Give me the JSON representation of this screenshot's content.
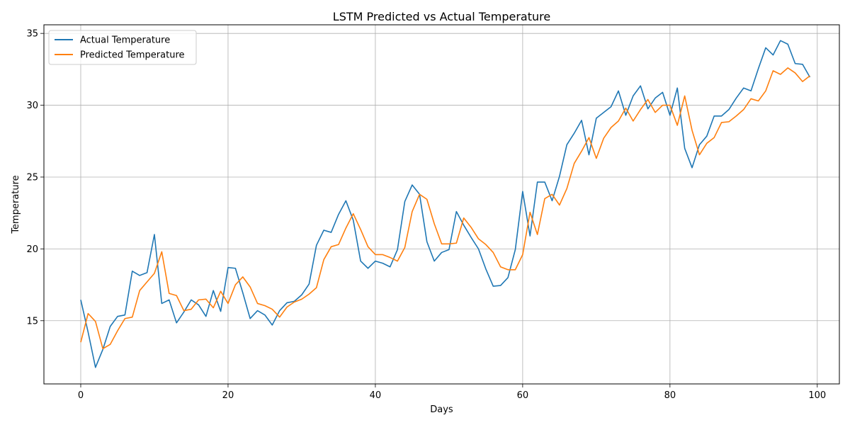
{
  "chart_data": {
    "type": "line",
    "title": "LSTM Predicted vs Actual Temperature",
    "xlabel": "Days",
    "ylabel": "Temperature",
    "xlim": [
      -5,
      103
    ],
    "ylim": [
      10.6,
      35.6
    ],
    "xticks": [
      0,
      20,
      40,
      60,
      80,
      100
    ],
    "yticks": [
      15,
      20,
      25,
      30,
      35
    ],
    "grid": true,
    "legend_position": "top-left",
    "x": [
      0,
      1,
      2,
      3,
      4,
      5,
      6,
      7,
      8,
      9,
      10,
      11,
      12,
      13,
      14,
      15,
      16,
      17,
      18,
      19,
      20,
      21,
      22,
      23,
      24,
      25,
      26,
      27,
      28,
      29,
      30,
      31,
      32,
      33,
      34,
      35,
      36,
      37,
      38,
      39,
      40,
      41,
      42,
      43,
      44,
      45,
      46,
      47,
      48,
      49,
      50,
      51,
      52,
      53,
      54,
      55,
      56,
      57,
      58,
      59,
      60,
      61,
      62,
      63,
      64,
      65,
      66,
      67,
      68,
      69,
      70,
      71,
      72,
      73,
      74,
      75,
      76,
      77,
      78,
      79,
      80,
      81,
      82,
      83,
      84,
      85,
      86,
      87,
      88,
      89,
      90,
      91,
      92,
      93,
      94,
      95,
      96,
      97,
      98,
      99
    ],
    "series": [
      {
        "name": "Actual Temperature",
        "color": "#1f77b4",
        "values": [
          16.45,
          14.2,
          11.75,
          13.0,
          14.6,
          15.3,
          15.4,
          18.45,
          18.15,
          18.35,
          21.0,
          16.2,
          16.45,
          14.85,
          15.6,
          16.45,
          16.1,
          15.3,
          17.1,
          15.65,
          18.7,
          18.65,
          16.95,
          15.15,
          15.7,
          15.4,
          14.7,
          15.7,
          16.25,
          16.35,
          16.8,
          17.55,
          20.25,
          21.3,
          21.15,
          22.4,
          23.35,
          22.0,
          19.15,
          18.65,
          19.15,
          19.0,
          18.75,
          19.95,
          23.3,
          24.45,
          23.8,
          20.5,
          19.15,
          19.75,
          19.95,
          22.6,
          21.65,
          20.8,
          20.0,
          18.6,
          17.4,
          17.45,
          18.0,
          19.95,
          24.0,
          20.9,
          24.65,
          24.65,
          23.35,
          25.05,
          27.25,
          28.05,
          28.95,
          26.55,
          29.1,
          29.5,
          29.9,
          31.0,
          29.3,
          30.65,
          31.35,
          29.75,
          30.5,
          30.9,
          29.3,
          31.2,
          27.0,
          25.65,
          27.25,
          27.85,
          29.25,
          29.25,
          29.7,
          30.5,
          31.2,
          31.0,
          32.55,
          34.0,
          33.5,
          34.5,
          34.25,
          32.9,
          32.85,
          31.95
        ]
      },
      {
        "name": "Predicted Temperature",
        "color": "#ff7f0e",
        "values": [
          13.5,
          15.5,
          14.95,
          13.05,
          13.35,
          14.3,
          15.15,
          15.25,
          17.1,
          17.7,
          18.3,
          19.8,
          16.9,
          16.75,
          15.7,
          15.8,
          16.45,
          16.5,
          15.9,
          17.05,
          16.2,
          17.5,
          18.05,
          17.35,
          16.2,
          16.05,
          15.8,
          15.25,
          15.95,
          16.3,
          16.5,
          16.85,
          17.3,
          19.25,
          20.15,
          20.3,
          21.45,
          22.45,
          21.35,
          20.15,
          19.6,
          19.6,
          19.4,
          19.15,
          20.1,
          22.6,
          23.8,
          23.45,
          21.75,
          20.35,
          20.35,
          20.4,
          22.15,
          21.5,
          20.7,
          20.3,
          19.75,
          18.75,
          18.55,
          18.55,
          19.6,
          22.55,
          21.0,
          23.5,
          23.8,
          23.05,
          24.2,
          25.95,
          26.8,
          27.75,
          26.3,
          27.7,
          28.45,
          28.9,
          29.8,
          28.9,
          29.7,
          30.4,
          29.5,
          30.0,
          30.0,
          28.6,
          30.65,
          28.25,
          26.55,
          27.35,
          27.75,
          28.8,
          28.85,
          29.25,
          29.7,
          30.45,
          30.3,
          31.0,
          32.4,
          32.15,
          32.6,
          32.25,
          31.65,
          32.05
        ]
      }
    ]
  }
}
